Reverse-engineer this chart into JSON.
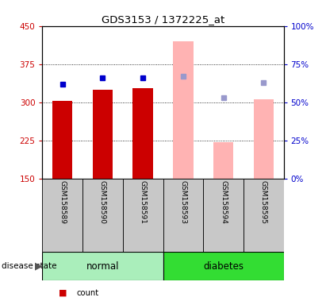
{
  "title": "GDS3153 / 1372225_at",
  "samples": [
    "GSM158589",
    "GSM158590",
    "GSM158591",
    "GSM158593",
    "GSM158594",
    "GSM158595"
  ],
  "groups": [
    "normal",
    "normal",
    "normal",
    "diabetes",
    "diabetes",
    "diabetes"
  ],
  "bar_values": [
    302,
    325,
    327,
    null,
    null,
    null
  ],
  "bar_absent_values": [
    null,
    null,
    null,
    420,
    222,
    305
  ],
  "rank_values": [
    62,
    66,
    66,
    null,
    null,
    null
  ],
  "rank_absent_values": [
    null,
    null,
    null,
    67,
    53,
    63
  ],
  "ylim_left": [
    150,
    450
  ],
  "ylim_right": [
    0,
    100
  ],
  "yticks_left": [
    150,
    225,
    300,
    375,
    450
  ],
  "yticks_right": [
    0,
    25,
    50,
    75,
    100
  ],
  "color_bar": "#cc0000",
  "color_bar_absent": "#ffb3b3",
  "color_rank": "#0000cc",
  "color_rank_absent": "#9999cc",
  "figsize": [
    4.11,
    3.84
  ],
  "dpi": 100,
  "left_label_color": "#cc0000",
  "right_label_color": "#0000cc",
  "normal_color": "#aaeebb",
  "diabetes_color": "#33dd33",
  "xlabel_bg": "#c8c8c8"
}
